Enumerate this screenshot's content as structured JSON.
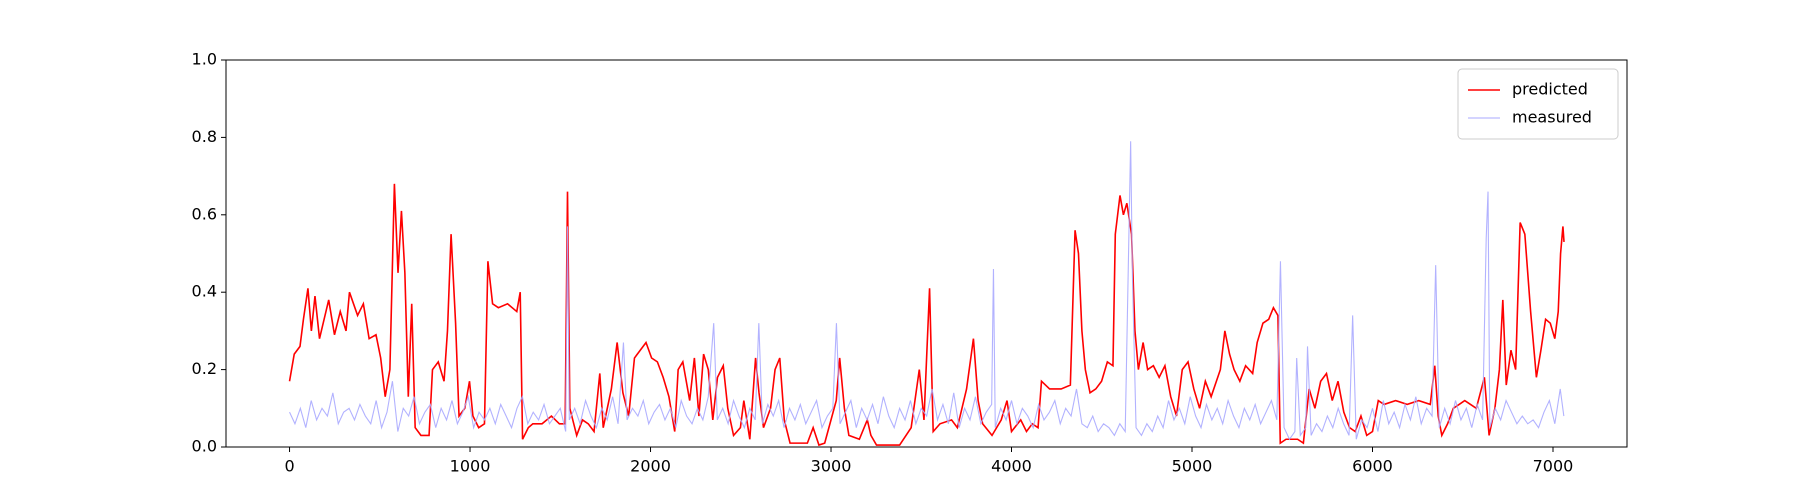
{
  "chart_data": {
    "type": "line",
    "xlim": [
      -352,
      7410
    ],
    "ylim": [
      0,
      1
    ],
    "xticks": [
      0,
      1000,
      2000,
      3000,
      4000,
      5000,
      6000,
      7000
    ],
    "yticks": [
      {
        "value": 0,
        "label": "0.0"
      },
      0.2,
      0.4,
      0.6,
      0.8,
      {
        "value": 1,
        "label": "1.0"
      }
    ],
    "legend": "upper right",
    "series": [
      {
        "name": "predicted",
        "color": "#ff0000",
        "x": [
          0,
          26,
          58,
          77,
          102,
          121,
          141,
          166,
          217,
          249,
          281,
          313,
          332,
          377,
          409,
          441,
          479,
          505,
          530,
          556,
          581,
          601,
          620,
          639,
          658,
          677,
          696,
          728,
          773,
          792,
          824,
          856,
          875,
          895,
          920,
          939,
          971,
          997,
          1016,
          1048,
          1080,
          1099,
          1125,
          1157,
          1208,
          1259,
          1278,
          1291,
          1323,
          1348,
          1399,
          1451,
          1495,
          1527,
          1540,
          1553,
          1591,
          1623,
          1655,
          1687,
          1719,
          1738,
          1783,
          1815,
          1847,
          1879,
          1911,
          1943,
          1975,
          2006,
          2038,
          2070,
          2102,
          2134,
          2153,
          2179,
          2217,
          2243,
          2268,
          2294,
          2320,
          2345,
          2371,
          2403,
          2428,
          2460,
          2498,
          2517,
          2550,
          2582,
          2601,
          2626,
          2665,
          2690,
          2716,
          2741,
          2773,
          2869,
          2901,
          2933,
          2965,
          3029,
          3048,
          3074,
          3099,
          3157,
          3201,
          3221,
          3252,
          3380,
          3444,
          3489,
          3515,
          3546,
          3566,
          3604,
          3668,
          3700,
          3751,
          3789,
          3815,
          3840,
          3892,
          3943,
          3975,
          4000,
          4051,
          4083,
          4115,
          4147,
          4166,
          4211,
          4275,
          4326,
          4352,
          4371,
          4390,
          4409,
          4435,
          4467,
          4499,
          4531,
          4562,
          4575,
          4601,
          4620,
          4639,
          4665,
          4684,
          4703,
          4729,
          4754,
          4786,
          4818,
          4850,
          4882,
          4914,
          4946,
          4978,
          5010,
          5042,
          5074,
          5106,
          5157,
          5182,
          5208,
          5233,
          5265,
          5297,
          5336,
          5361,
          5393,
          5425,
          5451,
          5476,
          5489,
          5521,
          5585,
          5617,
          5649,
          5681,
          5713,
          5745,
          5777,
          5809,
          5841,
          5873,
          5904,
          5936,
          5968,
          6000,
          6032,
          6064,
          6128,
          6192,
          6256,
          6320,
          6345,
          6364,
          6384,
          6416,
          6448,
          6480,
          6511,
          6543,
          6575,
          6620,
          6646,
          6678,
          6703,
          6722,
          6741,
          6767,
          6793,
          6818,
          6844,
          6876,
          6908,
          6933,
          6959,
          6985,
          7010,
          7029,
          7042,
          7055,
          7061
        ],
        "values": [
          0.17,
          0.24,
          0.26,
          0.33,
          0.41,
          0.3,
          0.39,
          0.28,
          0.38,
          0.29,
          0.35,
          0.3,
          0.4,
          0.34,
          0.37,
          0.28,
          0.29,
          0.23,
          0.13,
          0.2,
          0.68,
          0.45,
          0.61,
          0.45,
          0.13,
          0.37,
          0.05,
          0.03,
          0.03,
          0.2,
          0.22,
          0.17,
          0.3,
          0.55,
          0.32,
          0.08,
          0.1,
          0.17,
          0.08,
          0.05,
          0.06,
          0.48,
          0.37,
          0.36,
          0.37,
          0.35,
          0.4,
          0.02,
          0.05,
          0.06,
          0.06,
          0.08,
          0.06,
          0.06,
          0.66,
          0.1,
          0.03,
          0.07,
          0.06,
          0.04,
          0.19,
          0.05,
          0.15,
          0.27,
          0.14,
          0.08,
          0.23,
          0.25,
          0.27,
          0.23,
          0.22,
          0.18,
          0.13,
          0.04,
          0.2,
          0.22,
          0.12,
          0.23,
          0.08,
          0.24,
          0.2,
          0.07,
          0.18,
          0.21,
          0.1,
          0.03,
          0.05,
          0.12,
          0.02,
          0.23,
          0.14,
          0.05,
          0.1,
          0.2,
          0.23,
          0.07,
          0.01,
          0.01,
          0.05,
          0.005,
          0.01,
          0.12,
          0.23,
          0.1,
          0.03,
          0.02,
          0.07,
          0.03,
          0.005,
          0.005,
          0.05,
          0.2,
          0.07,
          0.41,
          0.04,
          0.06,
          0.07,
          0.05,
          0.15,
          0.28,
          0.12,
          0.06,
          0.03,
          0.07,
          0.12,
          0.04,
          0.07,
          0.04,
          0.06,
          0.05,
          0.17,
          0.15,
          0.15,
          0.16,
          0.56,
          0.5,
          0.3,
          0.2,
          0.14,
          0.15,
          0.17,
          0.22,
          0.21,
          0.55,
          0.65,
          0.6,
          0.63,
          0.55,
          0.3,
          0.2,
          0.27,
          0.2,
          0.21,
          0.18,
          0.21,
          0.13,
          0.08,
          0.2,
          0.22,
          0.15,
          0.1,
          0.17,
          0.13,
          0.2,
          0.3,
          0.24,
          0.2,
          0.17,
          0.21,
          0.19,
          0.27,
          0.32,
          0.33,
          0.36,
          0.34,
          0.01,
          0.02,
          0.02,
          0.01,
          0.15,
          0.1,
          0.17,
          0.19,
          0.12,
          0.17,
          0.09,
          0.05,
          0.04,
          0.08,
          0.03,
          0.04,
          0.12,
          0.11,
          0.12,
          0.11,
          0.12,
          0.11,
          0.21,
          0.08,
          0.03,
          0.06,
          0.1,
          0.11,
          0.12,
          0.11,
          0.1,
          0.18,
          0.03,
          0.1,
          0.2,
          0.38,
          0.16,
          0.25,
          0.2,
          0.58,
          0.55,
          0.35,
          0.18,
          0.25,
          0.33,
          0.32,
          0.28,
          0.35,
          0.5,
          0.57,
          0.53
        ]
      },
      {
        "name": "measured",
        "color": "#aaaaff",
        "x": [
          0,
          30,
          60,
          90,
          120,
          150,
          180,
          210,
          240,
          270,
          300,
          330,
          360,
          390,
          420,
          450,
          480,
          510,
          540,
          570,
          600,
          630,
          660,
          690,
          720,
          750,
          780,
          810,
          840,
          870,
          900,
          930,
          960,
          990,
          1020,
          1050,
          1080,
          1110,
          1140,
          1170,
          1200,
          1230,
          1260,
          1290,
          1320,
          1350,
          1380,
          1410,
          1440,
          1470,
          1500,
          1530,
          1540,
          1550,
          1580,
          1610,
          1640,
          1670,
          1700,
          1730,
          1760,
          1790,
          1820,
          1850,
          1870,
          1900,
          1930,
          1960,
          1990,
          2020,
          2050,
          2080,
          2110,
          2140,
          2170,
          2200,
          2230,
          2260,
          2290,
          2320,
          2350,
          2370,
          2400,
          2430,
          2460,
          2490,
          2520,
          2550,
          2580,
          2600,
          2620,
          2650,
          2680,
          2710,
          2740,
          2770,
          2800,
          2830,
          2860,
          2890,
          2920,
          2950,
          2980,
          3010,
          3030,
          3050,
          3080,
          3110,
          3140,
          3170,
          3200,
          3230,
          3260,
          3290,
          3320,
          3350,
          3380,
          3410,
          3440,
          3470,
          3500,
          3530,
          3560,
          3590,
          3620,
          3650,
          3680,
          3710,
          3740,
          3770,
          3800,
          3830,
          3860,
          3890,
          3900,
          3910,
          3940,
          3970,
          4000,
          4030,
          4060,
          4090,
          4120,
          4150,
          4180,
          4210,
          4240,
          4270,
          4300,
          4330,
          4360,
          4390,
          4420,
          4450,
          4480,
          4510,
          4540,
          4570,
          4600,
          4630,
          4660,
          4670,
          4690,
          4720,
          4750,
          4780,
          4810,
          4840,
          4870,
          4900,
          4930,
          4960,
          4990,
          5020,
          5050,
          5080,
          5110,
          5140,
          5170,
          5200,
          5230,
          5260,
          5290,
          5320,
          5350,
          5380,
          5410,
          5440,
          5470,
          5490,
          5510,
          5540,
          5570,
          5580,
          5600,
          5630,
          5640,
          5660,
          5690,
          5720,
          5750,
          5780,
          5810,
          5840,
          5870,
          5890,
          5910,
          5940,
          5970,
          6000,
          6030,
          6060,
          6090,
          6120,
          6150,
          6180,
          6210,
          6240,
          6270,
          6300,
          6330,
          6350,
          6370,
          6400,
          6430,
          6460,
          6490,
          6520,
          6550,
          6580,
          6610,
          6630,
          6640,
          6650,
          6680,
          6710,
          6740,
          6770,
          6800,
          6830,
          6860,
          6890,
          6920,
          6950,
          6980,
          7010,
          7040,
          7060
        ],
        "values": [
          0.09,
          0.06,
          0.1,
          0.05,
          0.12,
          0.07,
          0.1,
          0.08,
          0.14,
          0.06,
          0.09,
          0.1,
          0.07,
          0.11,
          0.08,
          0.06,
          0.12,
          0.05,
          0.09,
          0.17,
          0.04,
          0.1,
          0.08,
          0.13,
          0.06,
          0.09,
          0.11,
          0.05,
          0.1,
          0.07,
          0.12,
          0.06,
          0.09,
          0.13,
          0.05,
          0.09,
          0.07,
          0.1,
          0.06,
          0.11,
          0.08,
          0.05,
          0.1,
          0.13,
          0.06,
          0.09,
          0.07,
          0.11,
          0.06,
          0.08,
          0.1,
          0.04,
          0.57,
          0.07,
          0.1,
          0.06,
          0.12,
          0.08,
          0.05,
          0.1,
          0.07,
          0.13,
          0.06,
          0.27,
          0.07,
          0.1,
          0.08,
          0.12,
          0.06,
          0.09,
          0.11,
          0.07,
          0.1,
          0.05,
          0.12,
          0.08,
          0.06,
          0.1,
          0.07,
          0.13,
          0.32,
          0.07,
          0.1,
          0.06,
          0.12,
          0.08,
          0.05,
          0.1,
          0.07,
          0.32,
          0.06,
          0.11,
          0.08,
          0.12,
          0.05,
          0.1,
          0.07,
          0.11,
          0.06,
          0.09,
          0.12,
          0.05,
          0.08,
          0.1,
          0.32,
          0.06,
          0.09,
          0.12,
          0.05,
          0.1,
          0.07,
          0.11,
          0.06,
          0.13,
          0.08,
          0.05,
          0.1,
          0.07,
          0.12,
          0.06,
          0.1,
          0.08,
          0.15,
          0.07,
          0.11,
          0.06,
          0.14,
          0.05,
          0.1,
          0.07,
          0.13,
          0.06,
          0.09,
          0.11,
          0.46,
          0.05,
          0.1,
          0.07,
          0.12,
          0.06,
          0.1,
          0.08,
          0.05,
          0.11,
          0.07,
          0.09,
          0.12,
          0.06,
          0.1,
          0.08,
          0.15,
          0.06,
          0.05,
          0.08,
          0.04,
          0.06,
          0.05,
          0.03,
          0.06,
          0.04,
          0.79,
          0.44,
          0.05,
          0.03,
          0.06,
          0.04,
          0.08,
          0.05,
          0.12,
          0.07,
          0.1,
          0.06,
          0.13,
          0.08,
          0.05,
          0.11,
          0.07,
          0.1,
          0.06,
          0.12,
          0.08,
          0.05,
          0.1,
          0.07,
          0.11,
          0.06,
          0.09,
          0.12,
          0.07,
          0.48,
          0.05,
          0.02,
          0.04,
          0.23,
          0.03,
          0.05,
          0.26,
          0.03,
          0.06,
          0.04,
          0.08,
          0.05,
          0.1,
          0.06,
          0.03,
          0.34,
          0.02,
          0.07,
          0.05,
          0.1,
          0.04,
          0.12,
          0.06,
          0.09,
          0.05,
          0.11,
          0.07,
          0.13,
          0.06,
          0.1,
          0.08,
          0.47,
          0.05,
          0.1,
          0.06,
          0.12,
          0.07,
          0.1,
          0.05,
          0.11,
          0.07,
          0.54,
          0.66,
          0.05,
          0.1,
          0.07,
          0.12,
          0.09,
          0.06,
          0.08,
          0.06,
          0.07,
          0.05,
          0.09,
          0.12,
          0.06,
          0.15,
          0.08
        ]
      }
    ]
  }
}
